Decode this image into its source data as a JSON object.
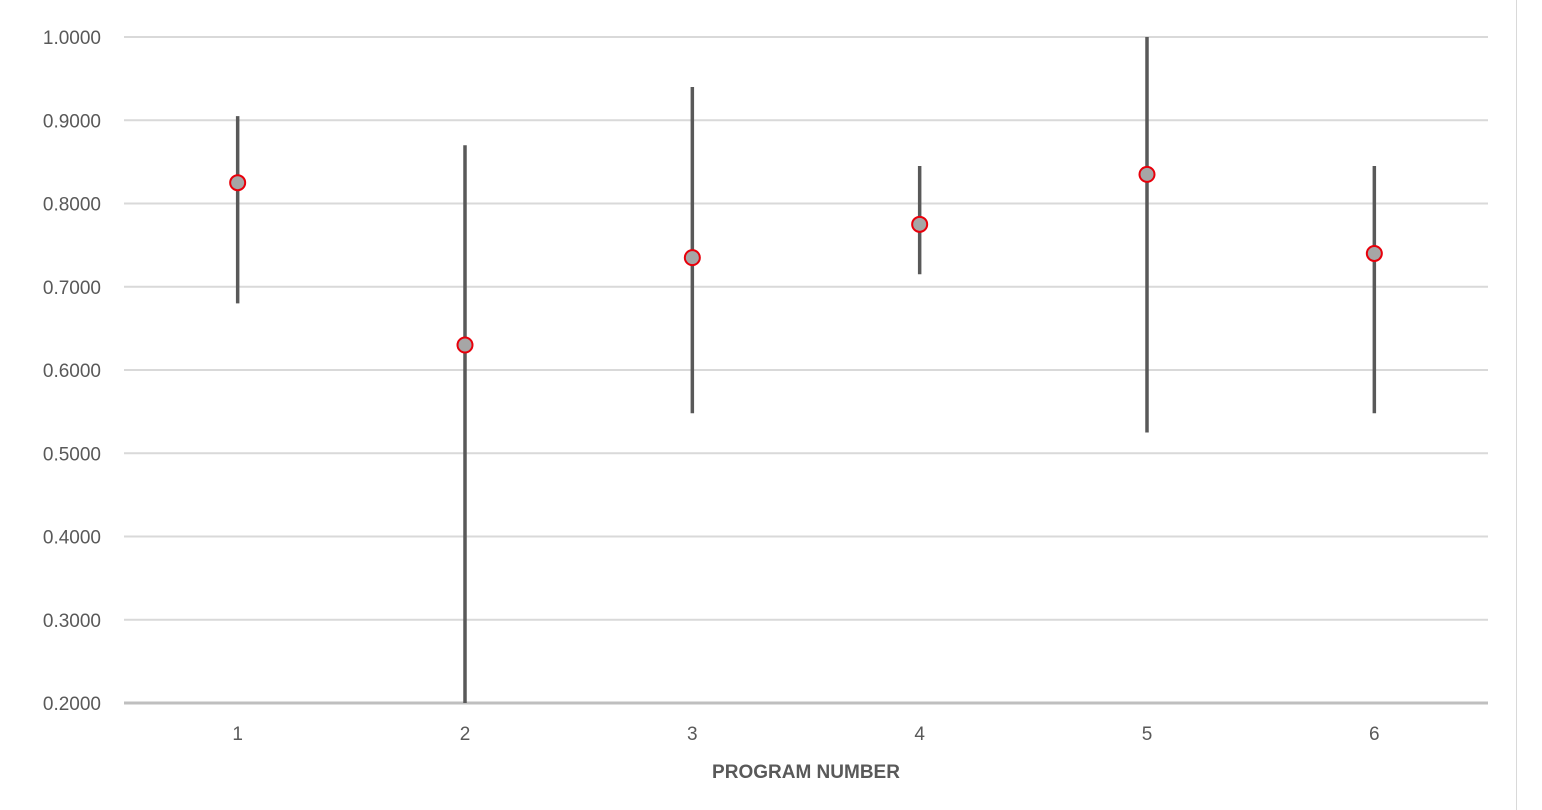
{
  "chart_data": {
    "type": "scatter",
    "title": "",
    "xlabel": "PROGRAM NUMBER",
    "ylabel": "",
    "categories": [
      "1",
      "2",
      "3",
      "4",
      "5",
      "6"
    ],
    "x": [
      1,
      2,
      3,
      4,
      5,
      6
    ],
    "series": [
      {
        "values": [
          0.825,
          0.63,
          0.735,
          0.775,
          0.835,
          0.74
        ],
        "error_low": [
          0.68,
          0.2,
          0.548,
          0.715,
          0.525,
          0.548
        ],
        "error_high": [
          0.905,
          0.87,
          0.94,
          0.845,
          1.0,
          0.845
        ]
      }
    ],
    "ylim": [
      0.2,
      1.0
    ],
    "y_ticks": [
      "0.2000",
      "0.3000",
      "0.4000",
      "0.5000",
      "0.6000",
      "0.7000",
      "0.8000",
      "0.9000",
      "1.0000"
    ],
    "grid": true,
    "legend": "none",
    "colors": {
      "marker_fill": "#a6a6a6",
      "marker_edge": "#e8000b",
      "error_bar": "#595959",
      "gridline": "#d9d9d9",
      "axis_line": "#bfbfbf",
      "text": "#595959"
    }
  }
}
